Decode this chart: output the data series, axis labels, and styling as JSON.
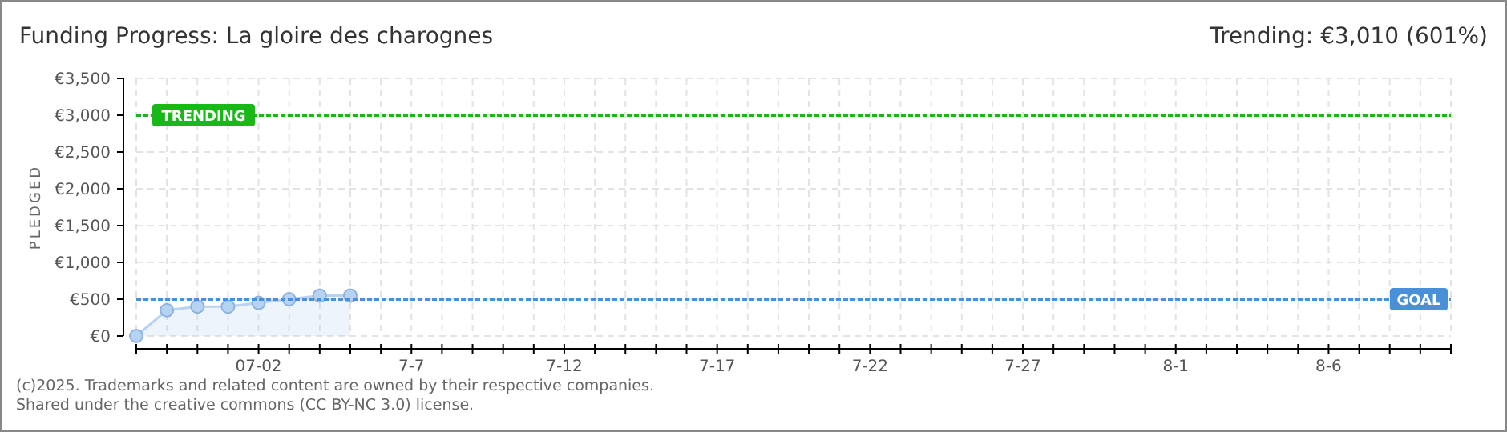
{
  "chart_data": {
    "type": "area",
    "title": "Funding Progress: La gloire des charognes",
    "subtitle": "Trending: €3,010 (601%)",
    "ylabel": "PLEDGED",
    "annotations": [
      "(c)2025. Trademarks and related content are owned by their respective companies.",
      "Shared under the creative commons (CC BY-NC 3.0) license."
    ],
    "x": [
      "--06-28",
      "--06-29",
      "--06-30",
      "--07-01",
      "--07-02",
      "--07-03",
      "--07-04",
      "--07-05"
    ],
    "series": [
      {
        "color": "#b7d3f3",
        "values": [
          0,
          350,
          400,
          400,
          450,
          500,
          550,
          550
        ]
      }
    ],
    "marker": "circle",
    "grid": true,
    "xlim": [
      "--06-28",
      "--08-10"
    ],
    "xticks": [
      {
        "value": "--06-28",
        "label": null
      },
      {
        "value": "--06-29",
        "label": null
      },
      {
        "value": "--06-30",
        "label": null
      },
      {
        "value": "--07-01",
        "label": null
      },
      {
        "value": "--07-02",
        "label": "07-02"
      },
      {
        "value": "--07-03",
        "label": null
      },
      {
        "value": "--07-04",
        "label": null
      },
      {
        "value": "--07-05",
        "label": null
      },
      {
        "value": "--07-06",
        "label": null
      },
      {
        "value": "--07-07",
        "label": "7-7"
      },
      {
        "value": "--07-08",
        "label": null
      },
      {
        "value": "--07-09",
        "label": null
      },
      {
        "value": "--07-10",
        "label": null
      },
      {
        "value": "--07-11",
        "label": null
      },
      {
        "value": "--07-12",
        "label": "7-12"
      },
      {
        "value": "--07-13",
        "label": null
      },
      {
        "value": "--07-14",
        "label": null
      },
      {
        "value": "--07-15",
        "label": null
      },
      {
        "value": "--07-16",
        "label": null
      },
      {
        "value": "--07-17",
        "label": "7-17"
      },
      {
        "value": "--07-18",
        "label": null
      },
      {
        "value": "--07-19",
        "label": null
      },
      {
        "value": "--07-20",
        "label": null
      },
      {
        "value": "--07-21",
        "label": null
      },
      {
        "value": "--07-22",
        "label": "7-22"
      },
      {
        "value": "--07-23",
        "label": null
      },
      {
        "value": "--07-24",
        "label": null
      },
      {
        "value": "--07-25",
        "label": null
      },
      {
        "value": "--07-26",
        "label": null
      },
      {
        "value": "--07-27",
        "label": "7-27"
      },
      {
        "value": "--07-28",
        "label": null
      },
      {
        "value": "--07-29",
        "label": null
      },
      {
        "value": "--07-30",
        "label": null
      },
      {
        "value": "--07-31",
        "label": null
      },
      {
        "value": "--08-01",
        "label": "8-1"
      },
      {
        "value": "--08-02",
        "label": null
      },
      {
        "value": "--08-03",
        "label": null
      },
      {
        "value": "--08-04",
        "label": null
      },
      {
        "value": "--08-05",
        "label": null
      },
      {
        "value": "--08-06",
        "label": "8-6"
      },
      {
        "value": "--08-07",
        "label": null
      },
      {
        "value": "--08-08",
        "label": null
      },
      {
        "value": "--08-09",
        "label": null
      },
      {
        "value": "--08-10",
        "label": null
      }
    ],
    "ylim": [
      0,
      3500
    ],
    "yticks": [
      {
        "value": 0,
        "label": "€0"
      },
      {
        "value": 500,
        "label": "€500"
      },
      {
        "value": 1000,
        "label": "€1,000"
      },
      {
        "value": 1500,
        "label": "€1,500"
      },
      {
        "value": 2000,
        "label": "€2,000"
      },
      {
        "value": 2500,
        "label": "€2,500"
      },
      {
        "value": 3000,
        "label": "€3,000"
      },
      {
        "value": 3500,
        "label": "€3,500"
      }
    ],
    "ref_lines": [
      {
        "axis": "y",
        "value": 3000,
        "label": "TRENDING",
        "color": "#18b818",
        "line_style": "dotted"
      },
      {
        "axis": "y",
        "value": 500,
        "label": "GOAL",
        "color": "#4a90d9",
        "line_style": "dotted"
      }
    ]
  }
}
